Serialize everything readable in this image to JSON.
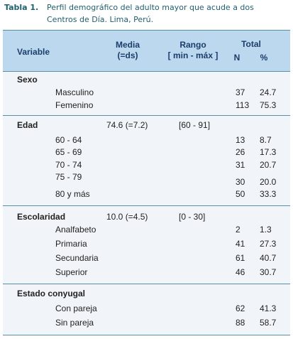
{
  "caption": {
    "label": "Tabla 1.",
    "lines": [
      "Perfil demográfico del adulto mayor que acude a dos",
      "Centros de Día. Lima, Perú."
    ]
  },
  "header": {
    "variable": "Variable",
    "media": [
      "Media",
      "(=ds)"
    ],
    "rango": [
      "Rango",
      "[ min - máx ]"
    ],
    "total": "Total",
    "n": "N",
    "pct": "%"
  },
  "sections": [
    {
      "title": "Sexo",
      "rows": [
        {
          "label": "Masculino",
          "n": "37",
          "pct": "24.7"
        },
        {
          "label": "Femenino",
          "n": "113",
          "pct": "75.3"
        }
      ]
    },
    {
      "title": "Edad",
      "media": "74.6 (=7.2)",
      "rango": "[60 - 91]",
      "rows": [
        {
          "label": "60 - 64",
          "n": "13",
          "pct": "8.7"
        },
        {
          "label": "65 - 69",
          "n": "26",
          "pct": "17.3"
        },
        {
          "label": "70 - 74",
          "n": "31",
          "pct": "20.7"
        },
        {
          "label": "75 - 79"
        },
        {
          "n": "30",
          "pct": "20.0"
        },
        {
          "label": "80 y más",
          "n": "50",
          "pct": "33.3"
        }
      ]
    },
    {
      "title": "Escolaridad",
      "media": "10.0 (=4.5)",
      "rango": "[0 - 30]",
      "rows": [
        {
          "label": "Analfabeto",
          "n": "2",
          "pct": "1.3"
        },
        {
          "label": "Primaria",
          "n": "41",
          "pct": "27.3"
        },
        {
          "label": "Secundaria",
          "n": "61",
          "pct": "40.7"
        },
        {
          "label": "Superior",
          "n": "46",
          "pct": "30.7"
        }
      ]
    },
    {
      "title": "Estado conyugal",
      "rows": [
        {
          "label": "Con pareja",
          "n": "62",
          "pct": "41.3"
        },
        {
          "label": "Sin pareja",
          "n": "88",
          "pct": "58.7"
        }
      ]
    }
  ]
}
